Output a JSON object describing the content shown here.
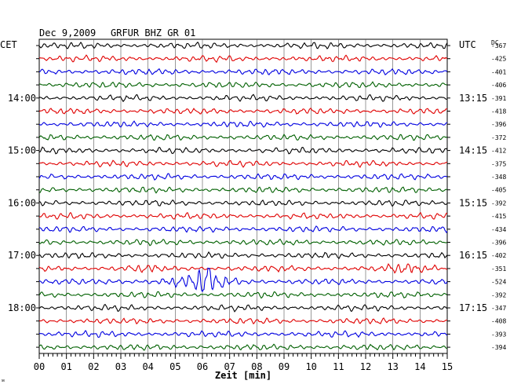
{
  "header": {
    "date": "Dec 9,2009",
    "station": "GRFUR BHZ GR 01"
  },
  "left_axis_label": "CET",
  "right_axis_label": "UTC",
  "dc_label": "DC",
  "xlabel": "Zeit [min]",
  "corner_mark": "ᴍ",
  "chart_data": {
    "type": "line",
    "title": "Dec 9,2009   GRFUR BHZ GR 01",
    "xlabel": "Zeit [min]",
    "xlim": [
      0,
      15
    ],
    "x_ticks": [
      "00",
      "01",
      "02",
      "03",
      "04",
      "05",
      "06",
      "07",
      "08",
      "09",
      "10",
      "11",
      "12",
      "13",
      "14",
      "15"
    ],
    "trace_colors": [
      "#000000",
      "#e00000",
      "#0000e0",
      "#006000"
    ],
    "trace_count": 24,
    "cet_labels": [
      {
        "trace": 4,
        "text": "14:00"
      },
      {
        "trace": 8,
        "text": "15:00"
      },
      {
        "trace": 12,
        "text": "16:00"
      },
      {
        "trace": 16,
        "text": "17:00"
      },
      {
        "trace": 20,
        "text": "18:00"
      }
    ],
    "utc_labels": [
      {
        "trace": 4,
        "text": "13:15"
      },
      {
        "trace": 8,
        "text": "14:15"
      },
      {
        "trace": 12,
        "text": "15:15"
      },
      {
        "trace": 16,
        "text": "16:15"
      },
      {
        "trace": 20,
        "text": "17:15"
      }
    ],
    "dc_offsets": [
      "-367",
      "-425",
      "-401",
      "-406",
      "-391",
      "-418",
      "-396",
      "-372",
      "-412",
      "-375",
      "-348",
      "-405",
      "-392",
      "-415",
      "-434",
      "-396",
      "-402",
      "-351",
      "-524",
      "-392",
      "-347",
      "-408",
      "-393",
      "-394"
    ],
    "event": {
      "trace": 18,
      "start_min": 3.0,
      "peak_min": 6.05,
      "end_min": 8.5
    }
  }
}
